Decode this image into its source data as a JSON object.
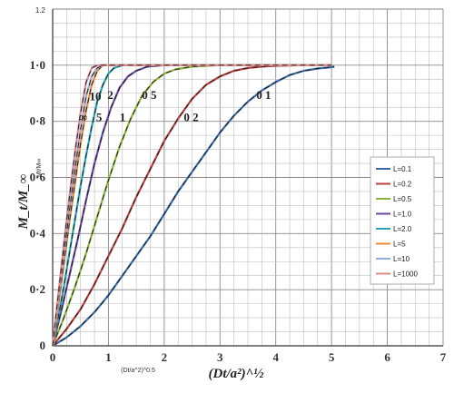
{
  "chart_data": {
    "type": "line",
    "xlim": [
      0,
      7
    ],
    "ylim": [
      0,
      1.2
    ],
    "x_ticks": [
      "0",
      "1",
      "2",
      "3",
      "4",
      "5",
      "6",
      "7"
    ],
    "y_ticks": [
      "0",
      "0.2",
      "0.4",
      "0.6",
      "0.8",
      "1.0",
      "1.2"
    ],
    "y_tick_display": [
      "0",
      "0·2",
      "0·4",
      "0·6",
      "0·8",
      "1·0",
      "1.2"
    ],
    "ylabel": "M_t/M_∞",
    "ylabel_small": "Mt/M∞",
    "xlabel": "(Dt/a²)^½",
    "xlabel_small": "(Dt/a^2)^0.5",
    "grid": true,
    "legend_position": "right",
    "series": [
      {
        "name": "L=0.1",
        "color": "#3a6aa6",
        "x": [
          0,
          0.25,
          0.5,
          0.75,
          1.0,
          1.25,
          1.5,
          1.75,
          2.0,
          2.25,
          2.5,
          2.75,
          3.0,
          3.25,
          3.5,
          3.75,
          4.0,
          4.25,
          4.5,
          4.75,
          5.0,
          5.05
        ],
        "y": [
          0,
          0.03,
          0.07,
          0.12,
          0.18,
          0.25,
          0.32,
          0.39,
          0.47,
          0.55,
          0.62,
          0.69,
          0.76,
          0.82,
          0.87,
          0.91,
          0.94,
          0.965,
          0.98,
          0.988,
          0.993,
          0.995
        ]
      },
      {
        "name": "L=0.2",
        "color": "#b84040",
        "x": [
          0,
          0.25,
          0.5,
          0.75,
          1.0,
          1.25,
          1.5,
          1.75,
          2.0,
          2.25,
          2.5,
          2.75,
          3.0,
          3.25,
          3.5,
          3.75,
          4.0,
          4.5,
          5.0
        ],
        "y": [
          0,
          0.06,
          0.13,
          0.22,
          0.32,
          0.42,
          0.53,
          0.63,
          0.73,
          0.81,
          0.88,
          0.93,
          0.96,
          0.98,
          0.99,
          0.995,
          0.998,
          1.0,
          1.0
        ]
      },
      {
        "name": "L=0.5",
        "color": "#8cb33a",
        "x": [
          0,
          0.2,
          0.4,
          0.6,
          0.8,
          1.0,
          1.2,
          1.4,
          1.6,
          1.8,
          2.0,
          2.2,
          2.5,
          3.0,
          4.0,
          5.0
        ],
        "y": [
          0,
          0.1,
          0.21,
          0.33,
          0.46,
          0.59,
          0.71,
          0.81,
          0.89,
          0.94,
          0.97,
          0.985,
          0.995,
          1.0,
          1.0,
          1.0
        ]
      },
      {
        "name": "L=1.0",
        "color": "#6a4aa0",
        "x": [
          0,
          0.15,
          0.3,
          0.45,
          0.6,
          0.75,
          0.9,
          1.05,
          1.2,
          1.35,
          1.5,
          1.7,
          2.0,
          2.5,
          5.0
        ],
        "y": [
          0,
          0.12,
          0.25,
          0.38,
          0.52,
          0.65,
          0.76,
          0.85,
          0.92,
          0.96,
          0.98,
          0.995,
          1.0,
          1.0,
          1.0
        ]
      },
      {
        "name": "L=2.0",
        "color": "#2aa3b5",
        "x": [
          0,
          0.1,
          0.2,
          0.3,
          0.4,
          0.5,
          0.6,
          0.7,
          0.8,
          0.9,
          1.0,
          1.1,
          1.25,
          1.5,
          5.0
        ],
        "y": [
          0,
          0.1,
          0.21,
          0.33,
          0.45,
          0.57,
          0.68,
          0.78,
          0.87,
          0.93,
          0.97,
          0.99,
          1.0,
          1.0,
          1.0
        ]
      },
      {
        "name": "L=5",
        "color": "#f08a30",
        "x": [
          0,
          0.1,
          0.2,
          0.3,
          0.4,
          0.5,
          0.6,
          0.7,
          0.8,
          0.9,
          1.0,
          5.0
        ],
        "y": [
          0,
          0.14,
          0.29,
          0.44,
          0.58,
          0.72,
          0.84,
          0.93,
          0.98,
          1.0,
          1.0,
          1.0
        ]
      },
      {
        "name": "L=10",
        "color": "#8fb0e0",
        "x": [
          0,
          0.1,
          0.2,
          0.3,
          0.4,
          0.5,
          0.6,
          0.7,
          0.8,
          0.9,
          5.0
        ],
        "y": [
          0,
          0.16,
          0.32,
          0.48,
          0.63,
          0.77,
          0.89,
          0.96,
          0.99,
          1.0,
          1.0
        ]
      },
      {
        "name": "L=1000",
        "color": "#e38a8a",
        "x": [
          0,
          0.1,
          0.2,
          0.3,
          0.4,
          0.5,
          0.6,
          0.7,
          0.8,
          5.0
        ],
        "y": [
          0,
          0.18,
          0.36,
          0.53,
          0.69,
          0.83,
          0.94,
          0.99,
          1.0,
          1.0
        ]
      }
    ],
    "annotations": [
      "∞",
      "10",
      "5",
      "2",
      "1",
      "0 5",
      "0 2",
      "0 1"
    ]
  }
}
